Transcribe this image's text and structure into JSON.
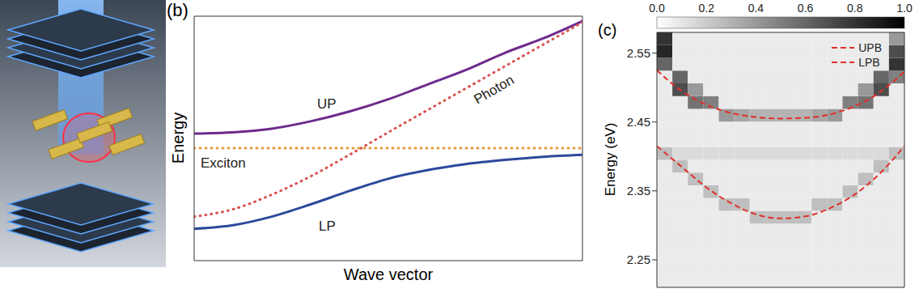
{
  "chart_data": [
    {
      "type": "line",
      "title": "(b)",
      "x_label": "Wave vector",
      "y_label": "Energy",
      "tick_labels": false,
      "x": [
        0,
        1,
        2,
        3,
        4,
        5,
        6,
        7,
        8,
        9,
        10
      ],
      "xlim": [
        0,
        10
      ],
      "ylim": [
        0,
        10
      ],
      "series": [
        {
          "name": "UP",
          "color": "#6d2a8c",
          "line_style": "solid",
          "values": [
            5.2,
            5.25,
            5.4,
            5.7,
            6.1,
            6.6,
            7.2,
            7.8,
            8.5,
            9.1,
            9.8
          ]
        },
        {
          "name": "LP",
          "color": "#2c4a9c",
          "line_style": "solid",
          "values": [
            1.3,
            1.45,
            1.8,
            2.3,
            2.85,
            3.35,
            3.7,
            3.95,
            4.12,
            4.25,
            4.33
          ]
        },
        {
          "name": "Photon",
          "color": "#d9534f",
          "line_style": "dotted",
          "values": [
            1.8,
            2.1,
            2.7,
            3.45,
            4.33,
            5.25,
            6.15,
            7.05,
            7.95,
            8.85,
            9.75
          ]
        },
        {
          "name": "Exciton",
          "color": "#e69a3c",
          "line_style": "dotted",
          "values": [
            4.6,
            4.6,
            4.6,
            4.6,
            4.6,
            4.6,
            4.6,
            4.6,
            4.6,
            4.6,
            4.6
          ]
        }
      ]
    },
    {
      "type": "heatmap",
      "title": "(c)",
      "y_label": "Energy (eV)",
      "tick_labels": "y",
      "legend": "upper right",
      "xlim": [
        -1,
        1
      ],
      "ylim": [
        2.21,
        2.58
      ],
      "yticks": [
        2.25,
        2.35,
        2.45,
        2.55
      ],
      "colorbar": {
        "range": [
          0,
          1
        ],
        "ticks": [
          {
            "value": 0,
            "label": "0.0"
          },
          {
            "value": 0.2,
            "label": "0.2"
          },
          {
            "value": 0.4,
            "label": "0.4"
          },
          {
            "value": 0.6,
            "label": "0.6"
          },
          {
            "value": 0.8,
            "label": "0.8"
          },
          {
            "value": 1,
            "label": "1.0"
          }
        ]
      },
      "x_bins": [
        -1,
        -0.875,
        -0.75,
        -0.625,
        -0.5,
        -0.375,
        -0.25,
        -0.125,
        0,
        0.125,
        0.25,
        0.375,
        0.5,
        0.625,
        0.75,
        0.875,
        1
      ],
      "y_bins": [
        2.21,
        2.2285,
        2.247,
        2.2655,
        2.284,
        2.3025,
        2.321,
        2.3395,
        2.358,
        2.3765,
        2.395,
        2.4135,
        2.432,
        2.4505,
        2.469,
        2.4875,
        2.506,
        2.5245,
        2.543,
        2.5615,
        2.58
      ],
      "cells": [
        [
          0.08,
          0.08,
          0.08,
          0.08,
          0.08,
          0.08,
          0.08,
          0.08,
          0.08,
          0.08,
          0.08,
          0.08,
          0.08,
          0.08,
          0.08,
          0.08
        ],
        [
          0.08,
          0.08,
          0.08,
          0.08,
          0.08,
          0.08,
          0.08,
          0.08,
          0.08,
          0.08,
          0.08,
          0.08,
          0.08,
          0.08,
          0.08,
          0.08
        ],
        [
          0.08,
          0.08,
          0.08,
          0.08,
          0.08,
          0.08,
          0.08,
          0.08,
          0.08,
          0.08,
          0.08,
          0.08,
          0.08,
          0.08,
          0.08,
          0.08
        ],
        [
          0.08,
          0.08,
          0.08,
          0.08,
          0.08,
          0.08,
          0.08,
          0.08,
          0.08,
          0.08,
          0.08,
          0.08,
          0.08,
          0.08,
          0.08,
          0.08
        ],
        [
          0.08,
          0.08,
          0.08,
          0.08,
          0.08,
          0.08,
          0.08,
          0.08,
          0.08,
          0.08,
          0.08,
          0.08,
          0.08,
          0.08,
          0.08,
          0.08
        ],
        [
          0.08,
          0.08,
          0.08,
          0.08,
          0.08,
          0.08,
          0.25,
          0.25,
          0.25,
          0.25,
          0.08,
          0.08,
          0.08,
          0.08,
          0.08,
          0.08
        ],
        [
          0.08,
          0.08,
          0.08,
          0.08,
          0.25,
          0.25,
          0.08,
          0.08,
          0.08,
          0.08,
          0.25,
          0.25,
          0.08,
          0.08,
          0.08,
          0.08
        ],
        [
          0.08,
          0.08,
          0.08,
          0.25,
          0.08,
          0.08,
          0.08,
          0.08,
          0.08,
          0.08,
          0.08,
          0.08,
          0.25,
          0.08,
          0.08,
          0.08
        ],
        [
          0.08,
          0.08,
          0.25,
          0.08,
          0.08,
          0.08,
          0.08,
          0.08,
          0.08,
          0.08,
          0.08,
          0.08,
          0.08,
          0.25,
          0.08,
          0.08
        ],
        [
          0.08,
          0.25,
          0.08,
          0.08,
          0.08,
          0.08,
          0.08,
          0.08,
          0.08,
          0.08,
          0.08,
          0.08,
          0.08,
          0.08,
          0.25,
          0.08
        ],
        [
          0.25,
          0.14,
          0.14,
          0.14,
          0.14,
          0.14,
          0.14,
          0.14,
          0.14,
          0.14,
          0.14,
          0.14,
          0.14,
          0.14,
          0.14,
          0.25
        ],
        [
          0.08,
          0.08,
          0.08,
          0.08,
          0.08,
          0.08,
          0.08,
          0.08,
          0.08,
          0.08,
          0.08,
          0.08,
          0.08,
          0.08,
          0.08,
          0.08
        ],
        [
          0.08,
          0.08,
          0.08,
          0.08,
          0.08,
          0.08,
          0.08,
          0.08,
          0.08,
          0.08,
          0.08,
          0.08,
          0.08,
          0.08,
          0.08,
          0.08
        ],
        [
          0.08,
          0.08,
          0.08,
          0.08,
          0.4,
          0.35,
          0.3,
          0.3,
          0.3,
          0.3,
          0.35,
          0.4,
          0.08,
          0.08,
          0.08,
          0.08
        ],
        [
          0.08,
          0.08,
          0.55,
          0.5,
          0.08,
          0.08,
          0.08,
          0.08,
          0.08,
          0.08,
          0.08,
          0.08,
          0.5,
          0.55,
          0.08,
          0.08
        ],
        [
          0.08,
          0.7,
          0.4,
          0.08,
          0.08,
          0.08,
          0.08,
          0.08,
          0.08,
          0.08,
          0.08,
          0.08,
          0.08,
          0.4,
          0.7,
          0.08
        ],
        [
          0.08,
          0.6,
          0.08,
          0.08,
          0.08,
          0.08,
          0.08,
          0.08,
          0.08,
          0.08,
          0.08,
          0.08,
          0.08,
          0.08,
          0.6,
          0.5
        ],
        [
          0.6,
          0.08,
          0.08,
          0.08,
          0.08,
          0.08,
          0.08,
          0.08,
          0.08,
          0.08,
          0.08,
          0.08,
          0.08,
          0.08,
          0.08,
          0.8
        ],
        [
          0.85,
          0.08,
          0.08,
          0.08,
          0.08,
          0.08,
          0.08,
          0.08,
          0.08,
          0.08,
          0.08,
          0.08,
          0.08,
          0.08,
          0.08,
          0.7
        ],
        [
          0.8,
          0.08,
          0.08,
          0.08,
          0.08,
          0.08,
          0.08,
          0.08,
          0.08,
          0.08,
          0.08,
          0.08,
          0.08,
          0.08,
          0.08,
          0.4
        ]
      ],
      "x": [
        -1,
        -0.8,
        -0.6,
        -0.4,
        -0.2,
        0,
        0.2,
        0.4,
        0.6,
        0.8,
        1
      ],
      "series": [
        {
          "name": "UPB",
          "color": "#e0302b",
          "line_style": "dashed",
          "values": [
            2.525,
            2.495,
            2.475,
            2.463,
            2.457,
            2.455,
            2.456,
            2.461,
            2.473,
            2.493,
            2.523
          ]
        },
        {
          "name": "LPB",
          "color": "#e0302b",
          "line_style": "dashed",
          "values": [
            2.415,
            2.385,
            2.355,
            2.332,
            2.316,
            2.31,
            2.313,
            2.325,
            2.345,
            2.375,
            2.415
          ]
        }
      ]
    }
  ]
}
